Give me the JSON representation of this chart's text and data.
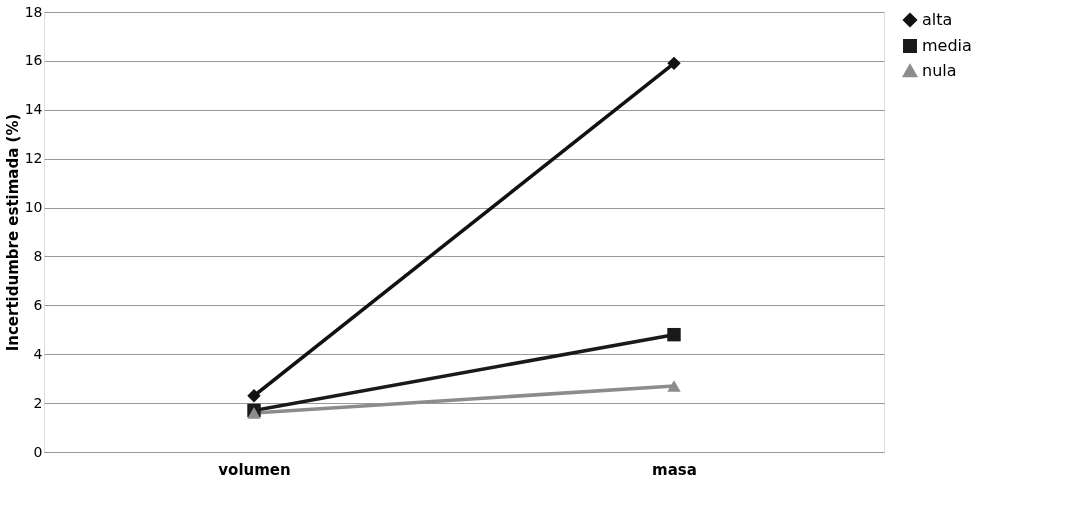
{
  "chart_data": {
    "type": "line",
    "ylabel": "Incertidumbre estimada (%)",
    "categories": [
      "volumen",
      "masa"
    ],
    "series": [
      {
        "name": "alta",
        "color": "#111111",
        "marker": "diamond",
        "values": [
          2.3,
          15.9
        ]
      },
      {
        "name": "media",
        "color": "#1a1a1a",
        "marker": "square",
        "values": [
          1.7,
          4.8
        ]
      },
      {
        "name": "nula",
        "color": "#8c8c8c",
        "marker": "triangle",
        "values": [
          1.6,
          2.7
        ]
      }
    ],
    "ylim": [
      0,
      18
    ],
    "yticks": [
      0,
      2,
      4,
      6,
      8,
      10,
      12,
      14,
      16,
      18
    ],
    "grid": "y",
    "legend": "right",
    "line_style": "solid"
  }
}
